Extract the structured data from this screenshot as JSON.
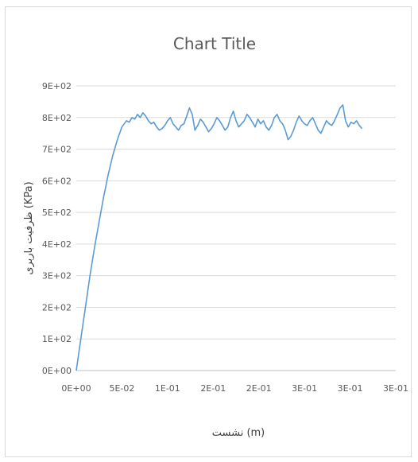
{
  "chart_data": {
    "type": "line",
    "title": "Chart Title",
    "xlabel": "نشست (m)",
    "ylabel": "ظرفیت باربری (KPa)",
    "xlim": [
      0,
      0.35
    ],
    "ylim": [
      0,
      900
    ],
    "x_ticks": [
      0,
      0.05,
      0.1,
      0.15,
      0.2,
      0.25,
      0.3,
      0.35
    ],
    "x_tick_labels": [
      "0E+00",
      "5E-02",
      "1E-01",
      "2E-01",
      "2E-01",
      "3E-01",
      "3E-01",
      "3E-01"
    ],
    "y_ticks": [
      0,
      100,
      200,
      300,
      400,
      500,
      600,
      700,
      800,
      900
    ],
    "y_tick_labels": [
      "0E+00",
      "1E+02",
      "2E+02",
      "3E+02",
      "4E+02",
      "5E+02",
      "6E+02",
      "7E+02",
      "8E+02",
      "9E+02"
    ],
    "grid": true,
    "legend": "none",
    "series": [
      {
        "color": "#5b9bd5",
        "x": [
          0,
          0.005,
          0.01,
          0.015,
          0.02,
          0.025,
          0.03,
          0.035,
          0.04,
          0.045,
          0.05,
          0.055,
          0.058,
          0.061,
          0.064,
          0.067,
          0.07,
          0.073,
          0.076,
          0.079,
          0.082,
          0.085,
          0.088,
          0.091,
          0.094,
          0.097,
          0.1,
          0.103,
          0.106,
          0.109,
          0.112,
          0.115,
          0.118,
          0.121,
          0.124,
          0.127,
          0.13,
          0.133,
          0.136,
          0.139,
          0.142,
          0.145,
          0.148,
          0.151,
          0.154,
          0.157,
          0.16,
          0.163,
          0.166,
          0.169,
          0.172,
          0.175,
          0.178,
          0.181,
          0.184,
          0.187,
          0.19,
          0.193,
          0.196,
          0.199,
          0.202,
          0.205,
          0.208,
          0.211,
          0.214,
          0.217,
          0.22,
          0.223,
          0.226,
          0.229,
          0.232,
          0.235,
          0.238,
          0.241,
          0.244,
          0.247,
          0.25,
          0.253,
          0.256,
          0.259,
          0.262,
          0.265,
          0.268,
          0.271,
          0.274,
          0.277,
          0.28,
          0.283,
          0.286,
          0.289,
          0.292,
          0.295,
          0.298,
          0.301,
          0.304,
          0.307,
          0.31,
          0.313
        ],
        "y": [
          0,
          100,
          200,
          300,
          390,
          470,
          550,
          620,
          680,
          730,
          770,
          790,
          785,
          800,
          795,
          810,
          800,
          815,
          805,
          790,
          780,
          785,
          770,
          760,
          765,
          775,
          790,
          800,
          780,
          770,
          760,
          775,
          780,
          805,
          830,
          810,
          760,
          775,
          795,
          785,
          770,
          755,
          765,
          780,
          800,
          790,
          775,
          760,
          770,
          800,
          820,
          790,
          770,
          780,
          790,
          810,
          800,
          785,
          770,
          795,
          780,
          790,
          770,
          760,
          775,
          800,
          810,
          790,
          780,
          760,
          730,
          740,
          760,
          785,
          805,
          790,
          780,
          775,
          790,
          800,
          780,
          760,
          750,
          770,
          790,
          780,
          775,
          790,
          810,
          830,
          840,
          790,
          770,
          785,
          780,
          790,
          775,
          765
        ]
      }
    ]
  }
}
